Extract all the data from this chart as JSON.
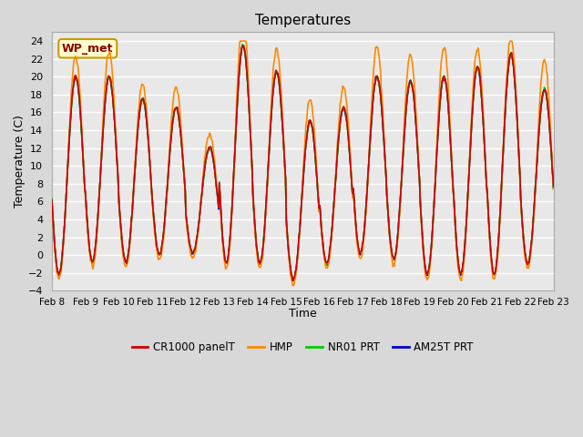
{
  "title": "Temperatures",
  "xlabel": "Time",
  "ylabel": "Temperature (C)",
  "ylim": [
    -4,
    25
  ],
  "yticks": [
    -4,
    -2,
    0,
    2,
    4,
    6,
    8,
    10,
    12,
    14,
    16,
    18,
    20,
    22,
    24
  ],
  "x_labels": [
    "Feb 8",
    "Feb 9",
    "Feb 10",
    "Feb 11",
    "Feb 12",
    "Feb 13",
    "Feb 14",
    "Feb 15",
    "Feb 16",
    "Feb 17",
    "Feb 18",
    "Feb 19",
    "Feb 20",
    "Feb 21",
    "Feb 22",
    "Feb 23"
  ],
  "colors": {
    "CR1000": "#cc0000",
    "HMP": "#ff8800",
    "NR01": "#00cc00",
    "AM25T": "#0000cc"
  },
  "fig_bg": "#d8d8d8",
  "plot_bg": "#e8e8e8",
  "annotation_text": "WP_met",
  "annotation_bg": "#ffffcc",
  "annotation_border": "#cc9900",
  "legend_labels": [
    "CR1000 panelT",
    "HMP",
    "NR01 PRT",
    "AM25T PRT"
  ],
  "linewidth": 1.2,
  "grid_color": "#ffffff",
  "n_days": 15,
  "day_mins": [
    -2.2,
    -0.8,
    -0.8,
    0.0,
    0.2,
    -1.0,
    -1.0,
    -2.8,
    -1.0,
    0.1,
    -0.5,
    -2.2,
    -2.2,
    -2.2,
    -1.0
  ],
  "day_maxs": [
    20.0,
    20.0,
    17.5,
    16.5,
    12.0,
    23.5,
    20.5,
    15.0,
    16.5,
    20.0,
    19.5,
    20.0,
    21.0,
    22.5,
    18.5
  ],
  "peak_hour": 14,
  "trough_hour": 5,
  "pts_per_day": 48
}
